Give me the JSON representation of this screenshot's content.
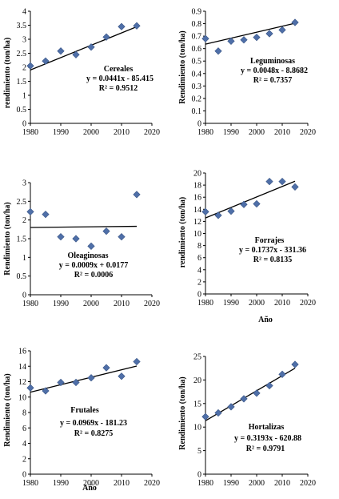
{
  "chart_data": [
    {
      "type": "scatter",
      "title": "Cereales",
      "equation": "y = 0.0441x - 85.415",
      "r2": "R² = 0.9512",
      "ylabel": "rendimiento (ton/ha)",
      "xlabel": "",
      "x": [
        1980,
        1985,
        1990,
        1995,
        2000,
        2005,
        2010,
        2015
      ],
      "y": [
        2.05,
        2.22,
        2.58,
        2.45,
        2.72,
        3.08,
        3.45,
        3.48
      ],
      "trend": {
        "slope": 0.0441,
        "intercept": -85.415
      },
      "xlim": [
        1980,
        2020
      ],
      "xticks": [
        1980,
        1990,
        2000,
        2010,
        2020
      ],
      "ylim": [
        0,
        4
      ],
      "yticks": [
        "0",
        "0.5",
        "1",
        "1.5",
        "2",
        "2.5",
        "3",
        "3.5",
        "4"
      ],
      "grid": false
    },
    {
      "type": "scatter",
      "title": "Leguminosas",
      "equation": "y = 0.0048x - 8.8682",
      "r2": "R² = 0.7357",
      "ylabel": "Rendimiento (ton/ha)",
      "xlabel": "",
      "x": [
        1980,
        1985,
        1990,
        1995,
        2000,
        2005,
        2010,
        2015
      ],
      "y": [
        0.68,
        0.58,
        0.66,
        0.67,
        0.69,
        0.72,
        0.75,
        0.81
      ],
      "trend": {
        "slope": 0.0048,
        "intercept": -8.8682
      },
      "xlim": [
        1980,
        2020
      ],
      "xticks": [
        1980,
        1990,
        2000,
        2010,
        2020
      ],
      "ylim": [
        0,
        0.9
      ],
      "yticks": [
        "0",
        "0.1",
        "0.2",
        "0.3",
        "0.4",
        "0.5",
        "0.6",
        "0.7",
        "0.8",
        "0.9"
      ],
      "grid": false
    },
    {
      "type": "scatter",
      "title": "Oleaginosas",
      "equation": "y = 0.0009x + 0.0177",
      "r2": "R² = 0.0006",
      "ylabel": "Rendimiento (ton/ha)",
      "xlabel": "",
      "x": [
        1980,
        1985,
        1990,
        1995,
        2000,
        2005,
        2010,
        2015
      ],
      "y": [
        2.22,
        2.15,
        1.55,
        1.5,
        1.3,
        1.7,
        1.55,
        2.68
      ],
      "trend": {
        "slope": 0.0009,
        "intercept": 0.0177
      },
      "xlim": [
        1980,
        2020
      ],
      "xticks": [
        1980,
        1990,
        2000,
        2010,
        2020
      ],
      "ylim": [
        0,
        3
      ],
      "yticks": [
        "0",
        "0.5",
        "1",
        "1.5",
        "2",
        "2.5",
        "3"
      ],
      "grid": false
    },
    {
      "type": "scatter",
      "title": "Forrajes",
      "equation": "y = 0.1737x - 331.36",
      "r2": "R² = 0.8135",
      "ylabel": "rendimiento (ton/ha)",
      "xlabel": "Año",
      "x": [
        1980,
        1985,
        1990,
        1995,
        2000,
        2005,
        2010,
        2015
      ],
      "y": [
        13.6,
        13.0,
        13.7,
        14.8,
        14.9,
        18.6,
        18.6,
        17.7
      ],
      "trend": {
        "slope": 0.1737,
        "intercept": -331.36
      },
      "xlim": [
        1980,
        2020
      ],
      "xticks": [
        1980,
        1990,
        2000,
        2010,
        2020
      ],
      "ylim": [
        0,
        20
      ],
      "yticks": [
        "0",
        "2",
        "4",
        "6",
        "8",
        "10",
        "12",
        "14",
        "16",
        "18",
        "20"
      ],
      "grid": false
    },
    {
      "type": "scatter",
      "title": "Frutales",
      "equation": "y = 0.0969x - 181.23",
      "r2": "R² = 0.8275",
      "ylabel": "Rendimiento (ton/ha)",
      "xlabel": "Año",
      "x": [
        1980,
        1985,
        1990,
        1995,
        2000,
        2005,
        2010,
        2015
      ],
      "y": [
        11.2,
        10.8,
        11.9,
        11.9,
        12.5,
        13.8,
        12.7,
        14.6
      ],
      "trend": {
        "slope": 0.0969,
        "intercept": -181.23
      },
      "xlim": [
        1980,
        2020
      ],
      "xticks": [
        1980,
        1990,
        2000,
        2010,
        2020
      ],
      "ylim": [
        0,
        16
      ],
      "yticks": [
        "0",
        "2",
        "4",
        "6",
        "8",
        "10",
        "12",
        "14",
        "16"
      ],
      "grid": false
    },
    {
      "type": "scatter",
      "title": "Hortalizas",
      "equation": "y = 0.3193x - 620.88",
      "r2": "R² = 0.9791",
      "ylabel": "Rendimiento (ton/ha)",
      "xlabel": "",
      "x": [
        1980,
        1985,
        1990,
        1995,
        2000,
        2005,
        2010,
        2015
      ],
      "y": [
        12.2,
        13.0,
        14.3,
        16.0,
        17.2,
        18.8,
        21.2,
        23.3
      ],
      "trend": {
        "slope": 0.3193,
        "intercept": -620.88
      },
      "xlim": [
        1980,
        2020
      ],
      "xticks": [
        1980,
        1990,
        2000,
        2010,
        2020
      ],
      "ylim": [
        0,
        25
      ],
      "yticks": [
        "0",
        "5",
        "10",
        "15",
        "20",
        "25"
      ],
      "grid": false
    }
  ],
  "colors": {
    "marker": "#4F6FA8",
    "marker_edge": "#3A5686",
    "trendline": "#000000"
  }
}
